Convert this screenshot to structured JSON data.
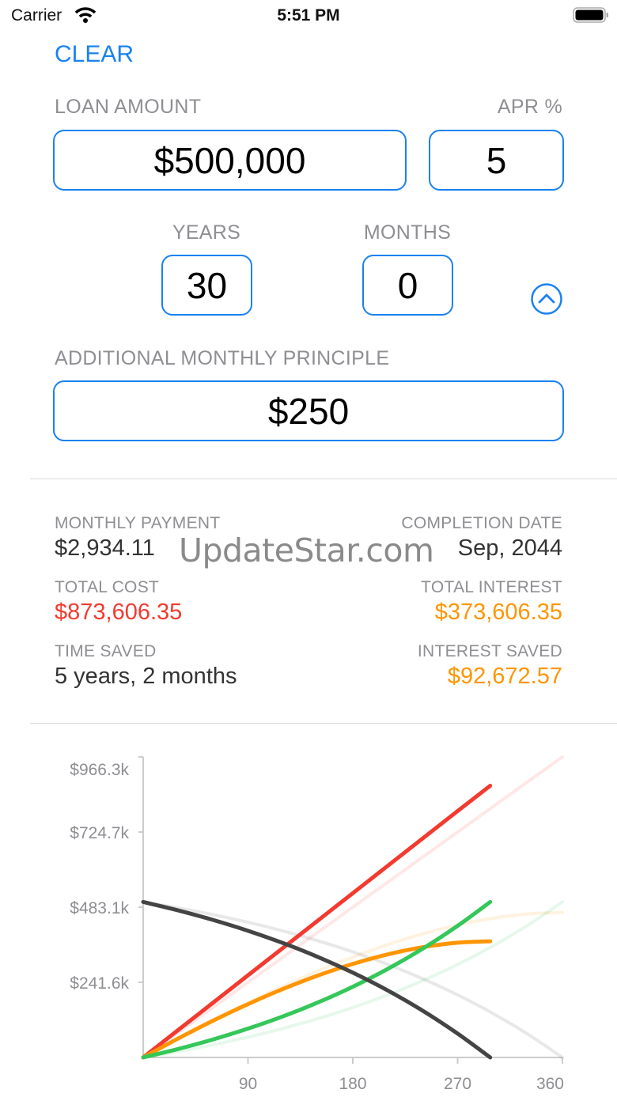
{
  "status_bar": {
    "carrier": "Carrier",
    "time": "5:51 PM",
    "wifi_icon": "wifi-icon",
    "battery_icon": "battery-icon"
  },
  "clear_label": "CLEAR",
  "colors": {
    "accent": "#1a82f0",
    "total_cost": "#f33a30",
    "interest": "#ff9500",
    "principal": "#34c759",
    "balance": "#444444"
  },
  "inputs": {
    "loan_amount": {
      "label": "LOAN AMOUNT",
      "value": "$500,000"
    },
    "apr": {
      "label": "APR %",
      "value": "5"
    },
    "years": {
      "label": "YEARS",
      "value": "30"
    },
    "months": {
      "label": "MONTHS",
      "value": "0"
    },
    "additional": {
      "label": "ADDITIONAL MONTHLY PRINCIPLE",
      "value": "$250"
    },
    "collapse_icon": "chevron-up-circle-icon"
  },
  "results": {
    "monthly_payment": {
      "label": "MONTHLY PAYMENT",
      "value": "$2,934.11"
    },
    "completion_date": {
      "label": "COMPLETION DATE",
      "value": "Sep, 2044"
    },
    "total_cost": {
      "label": "TOTAL COST",
      "value": "$873,606.35"
    },
    "total_interest": {
      "label": "TOTAL INTEREST",
      "value": "$373,606.35"
    },
    "time_saved": {
      "label": "TIME SAVED",
      "value": "5 years, 2 months"
    },
    "interest_saved": {
      "label": "INTEREST SAVED",
      "value": "$92,672.57"
    }
  },
  "watermark": "UpdateStar.com",
  "chart_data": {
    "type": "line",
    "xlim": [
      0,
      360
    ],
    "ylim": [
      0,
      966300
    ],
    "x_ticks": [
      "90",
      "180",
      "270",
      "360"
    ],
    "y_ticks": [
      "$241.6k",
      "$483.1k",
      "$724.7k",
      "$966.3k"
    ],
    "grid": false,
    "series": [
      {
        "key": "cost_std",
        "color": "#f33a30",
        "faded": true,
        "x": [
          0,
          30,
          60,
          90,
          120,
          150,
          180,
          210,
          240,
          270,
          300,
          330,
          360
        ],
        "y": [
          0,
          80523,
          161047,
          241570,
          322093,
          402617,
          483140,
          563663,
          644186,
          724710,
          805233,
          885756,
          966280
        ]
      },
      {
        "key": "interest_std",
        "color": "#ff9500",
        "faded": true,
        "x": [
          0,
          30,
          60,
          90,
          120,
          150,
          180,
          210,
          240,
          270,
          300,
          330,
          360
        ],
        "y": [
          0,
          61369,
          120191,
          176134,
          228804,
          277777,
          322561,
          362599,
          397250,
          425811,
          447457,
          461285,
          466280
        ]
      },
      {
        "key": "principal_std",
        "color": "#34c759",
        "faded": true,
        "x": [
          0,
          30,
          60,
          90,
          120,
          150,
          180,
          210,
          240,
          270,
          300,
          330,
          360
        ],
        "y": [
          0,
          19154,
          40856,
          65436,
          93289,
          124840,
          160579,
          201064,
          246936,
          298899,
          357776,
          424471,
          500000
        ]
      },
      {
        "key": "balance_std",
        "color": "#444444",
        "faded": true,
        "x": [
          0,
          30,
          60,
          90,
          120,
          150,
          180,
          210,
          240,
          270,
          300,
          330,
          360
        ],
        "y": [
          500000,
          480846,
          459144,
          434564,
          406711,
          375160,
          339421,
          298936,
          253064,
          201101,
          142224,
          75529,
          0
        ]
      },
      {
        "key": "cost",
        "color": "#f33a30",
        "faded": false,
        "x": [
          0,
          30,
          60,
          90,
          120,
          150,
          180,
          210,
          240,
          270,
          298
        ],
        "y": [
          0,
          88023,
          176047,
          264070,
          352093,
          440117,
          528140,
          616163,
          704186,
          792210,
          873606
        ]
      },
      {
        "key": "interest",
        "color": "#ff9500",
        "faded": false,
        "x": [
          0,
          30,
          60,
          90,
          120,
          150,
          180,
          210,
          240,
          270,
          298
        ],
        "y": [
          0,
          60898,
          118190,
          171403,
          219983,
          263326,
          300736,
          331427,
          354488,
          368925,
          373606
        ]
      },
      {
        "key": "principal",
        "color": "#34c759",
        "faded": false,
        "x": [
          0,
          30,
          60,
          90,
          120,
          150,
          180,
          210,
          240,
          270,
          298
        ],
        "y": [
          0,
          27125,
          57857,
          92667,
          132110,
          176791,
          227404,
          284736,
          349698,
          423285,
          500000
        ]
      },
      {
        "key": "balance",
        "color": "#444444",
        "faded": false,
        "x": [
          0,
          30,
          60,
          90,
          120,
          150,
          180,
          210,
          240,
          270,
          298
        ],
        "y": [
          500000,
          472875,
          442143,
          407333,
          367890,
          323209,
          272596,
          215264,
          150302,
          76715,
          0
        ]
      }
    ]
  }
}
